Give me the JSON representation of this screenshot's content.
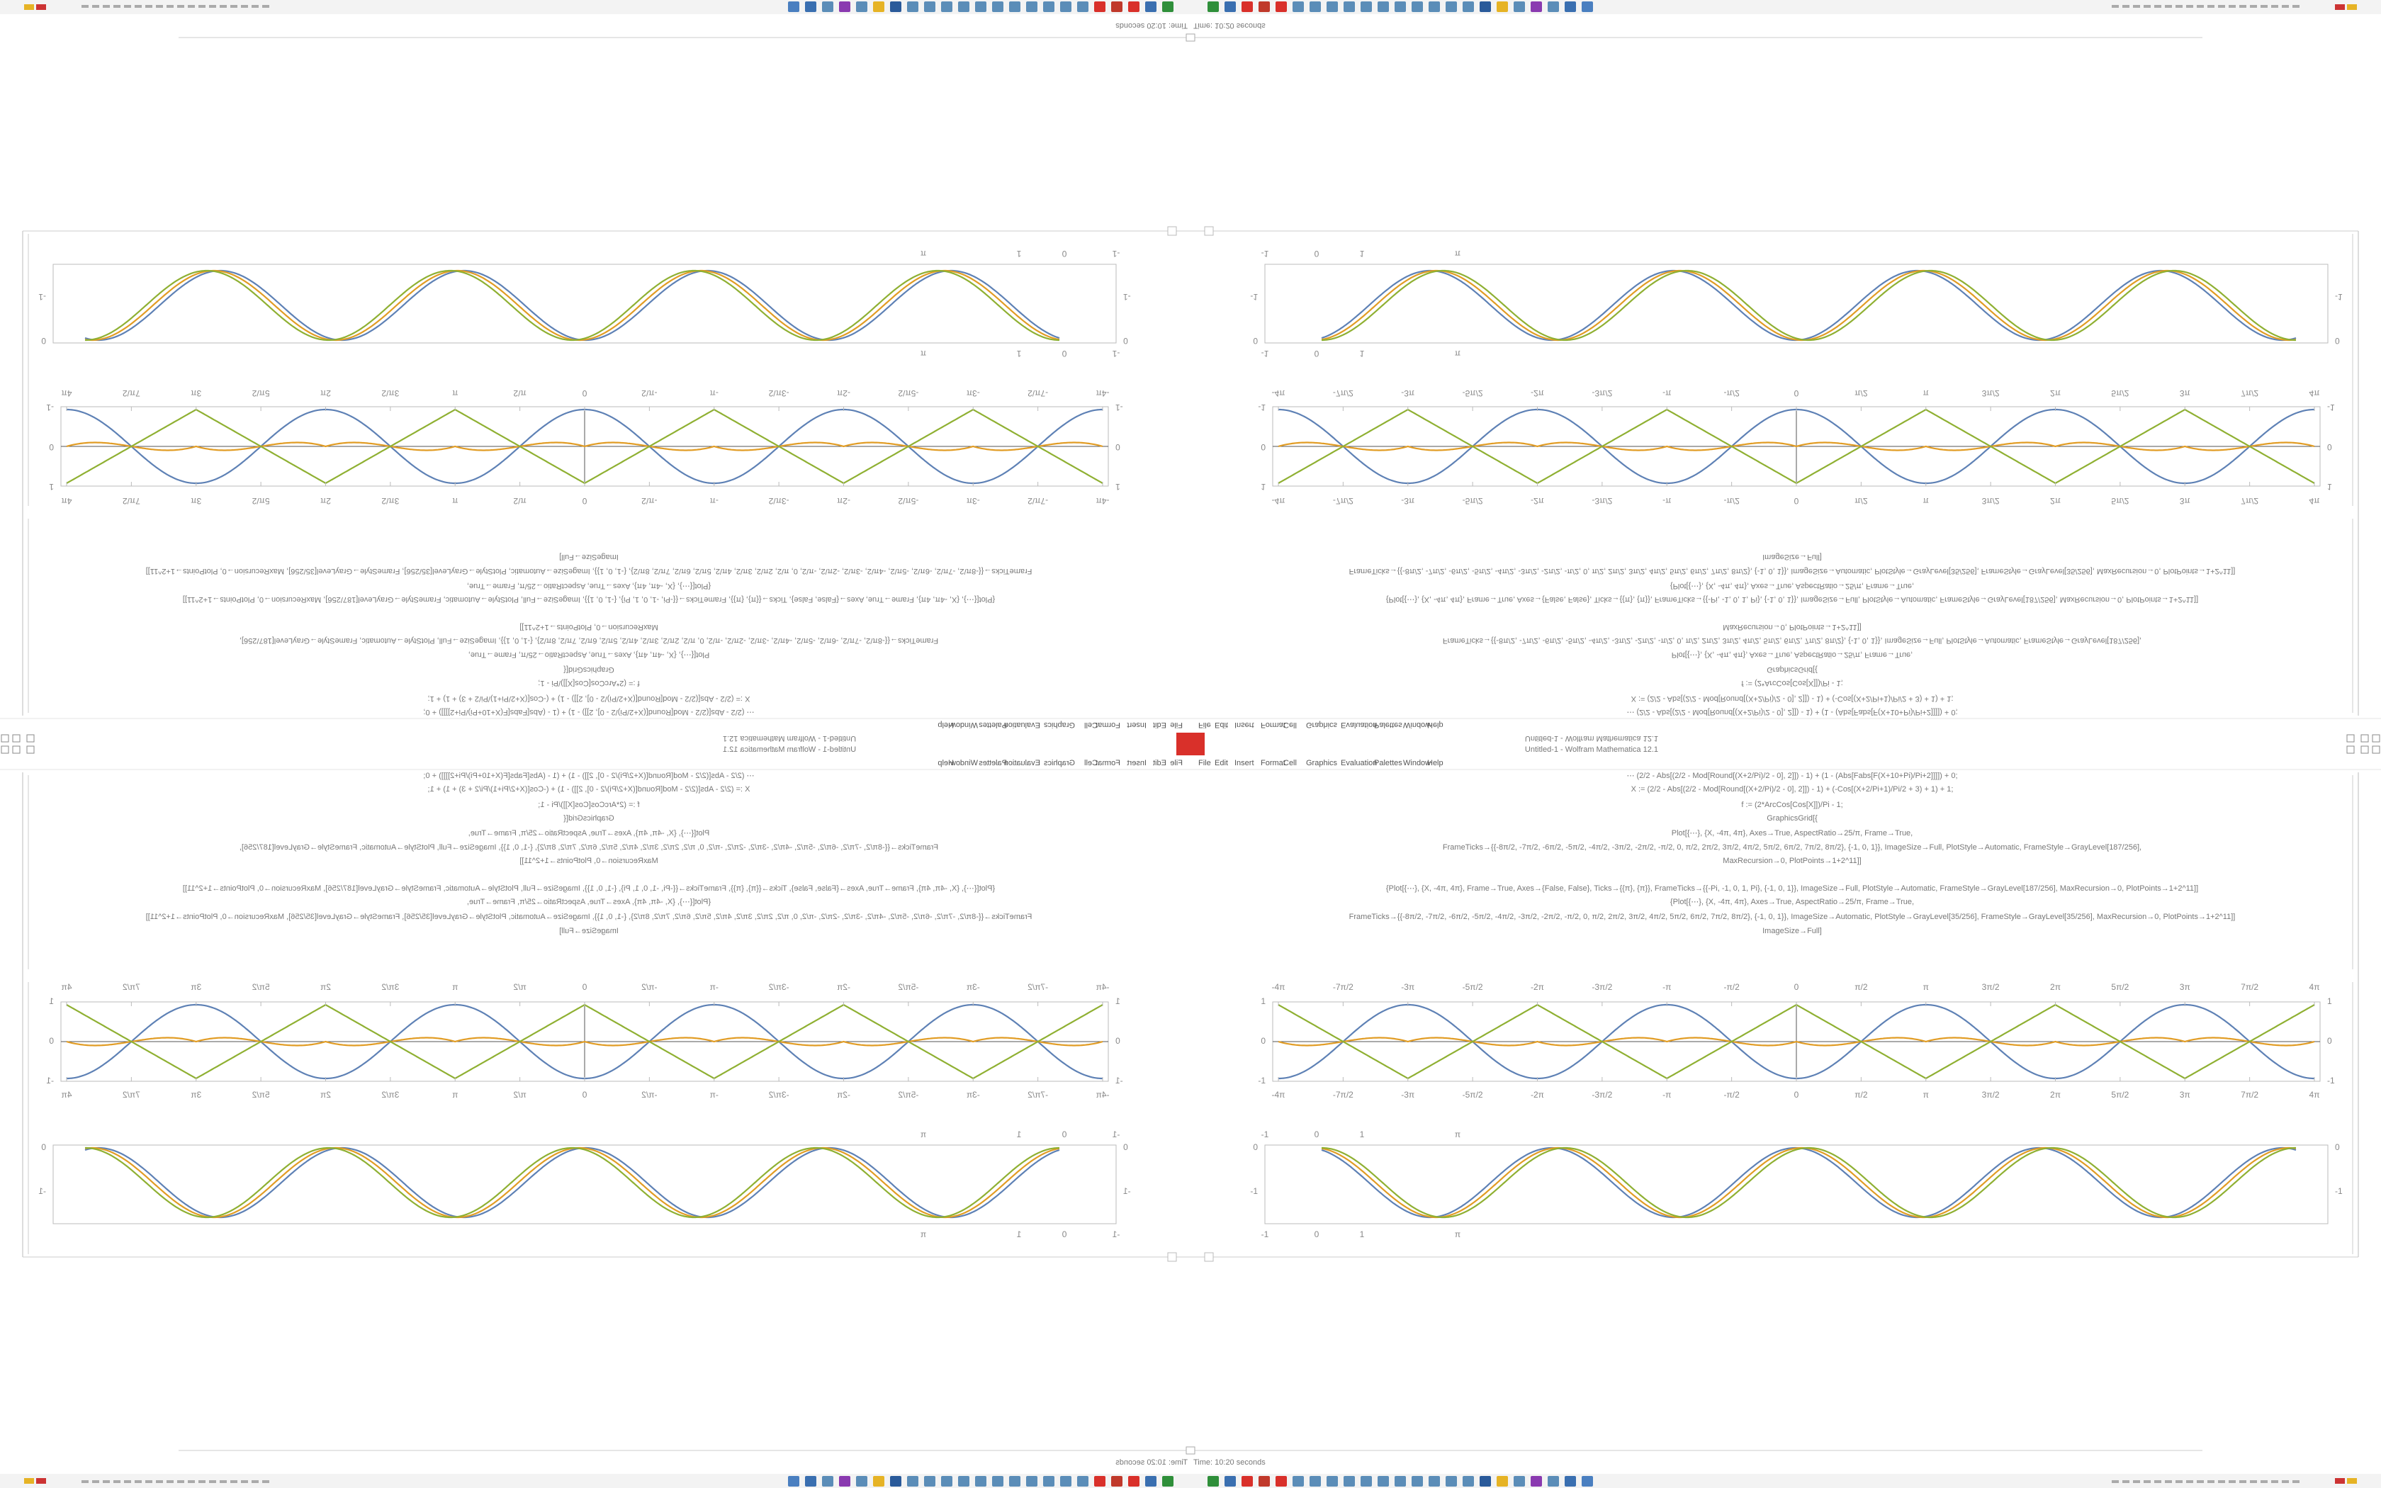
{
  "window": {
    "title": "Untitled-1 - Wolfram Mathematica 12.1",
    "menu": [
      "File",
      "Edit",
      "Insert",
      "Format",
      "Cell",
      "Graphics",
      "Evaluation",
      "Palettes",
      "Window",
      "Help"
    ]
  },
  "code": {
    "lines": [
      "⋯ (2/2 - Abs[(2/2 - Mod[Round[(X+2/Pi)/2 - 0], 2]]) - 1) + (1 - (Abs[Fabs[F(X+10+Pi)/Pi+2]]]]) + 0;",
      "X := (2/2 - Abs[(2/2 - Mod[Round[(X+2/Pi)/2 - 0], 2]]) - 1) + (-Cos[(X+2/Pi+1)/Pi/2 + 3) + 1) + 1;",
      "f := (2*ArcCos[Cos[X]])/Pi - 1;",
      "GraphicsGrid[{",
      "Plot[{⋯}, {X, -4π, 4π}, Axes→True, AspectRatio→25/π, Frame→True,",
      "FrameTicks→{{-8π/2, -7π/2, -6π/2, -5π/2, -4π/2, -3π/2, -2π/2, -π/2, 0, π/2, 2π/2, 3π/2, 4π/2, 5π/2, 6π/2, 7π/2, 8π/2}, {-1, 0, 1}}, ImageSize→Full, PlotStyle→Automatic, FrameStyle→GrayLevel[187/256],",
      "MaxRecursion→0, PlotPoints→1+2^11]]",
      "{Plot[{⋯}, {X, -4π, 4π}, Frame→True, Axes→{False, False}, Ticks→{{π}, {π}}, FrameTicks→{{-Pi, -1, 0, 1, Pi}, {-1, 0, 1}}, ImageSize→Full, PlotStyle→Automatic, FrameStyle→GrayLevel[187/256], MaxRecursion→0, PlotPoints→1+2^11]]",
      "{Plot[{⋯}, {X, -4π, 4π}, Axes→True, AspectRatio→25/π, Frame→True,",
      "FrameTicks→{{-8π/2, -7π/2, -6π/2, -5π/2, -4π/2, -3π/2, -2π/2, -π/2, 0, π/2, 2π/2, 3π/2, 4π/2, 5π/2, 6π/2, 7π/2, 8π/2}, {-1, 0, 1}}, ImageSize→Automatic, PlotStyle→GrayLevel[35/256], FrameStyle→GrayLevel[35/256], MaxRecursion→0, PlotPoints→1+2^11]]",
      "ImageSize→Full]"
    ]
  },
  "plot1": {
    "xticks": [
      "-4π",
      "-7π/2",
      "-3π",
      "-5π/2",
      "-2π",
      "-3π/2",
      "-π",
      "-π/2",
      "0",
      "π/2",
      "π",
      "3π/2",
      "2π",
      "5π/2",
      "3π",
      "7π/2",
      "4π"
    ],
    "yticks": [
      "1",
      "0",
      "-1"
    ]
  },
  "plot2": {
    "xticks": [
      "-1",
      "0",
      "1",
      "π"
    ],
    "yticks": [
      "0",
      "-1"
    ]
  },
  "status": {
    "time": "Time: 10:20 seconds"
  }
}
